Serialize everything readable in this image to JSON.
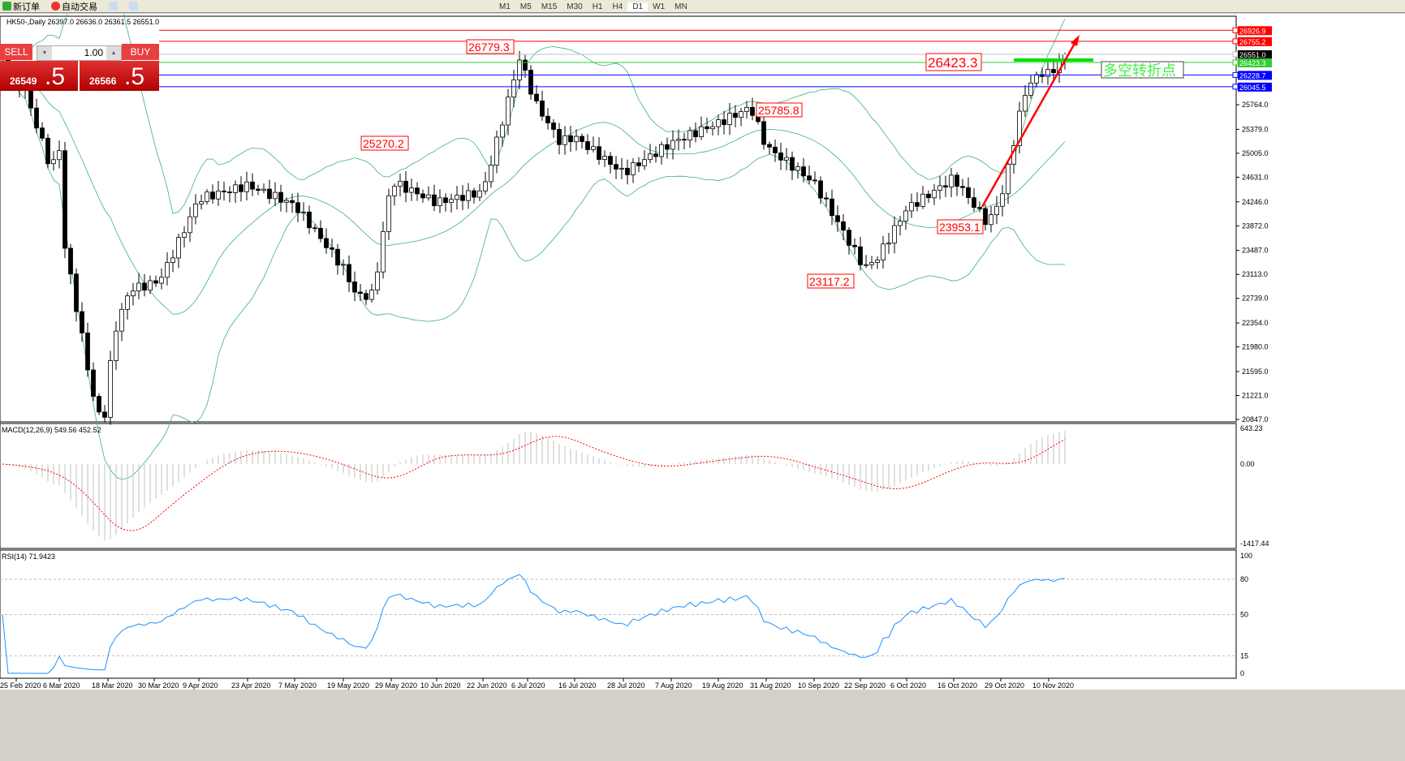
{
  "toolbar": {
    "new_order": "新订单",
    "auto_trading": "自动交易",
    "timeframes": [
      "M1",
      "M5",
      "M15",
      "M30",
      "H1",
      "H4",
      "D1",
      "W1",
      "MN"
    ],
    "active_timeframe": "D1"
  },
  "chart": {
    "title": "HK50-,Daily  26397.0 26636.0 26361.5 26551.0"
  },
  "trade_panel": {
    "sell_label": "SELL",
    "buy_label": "BUY",
    "lots": "1.00",
    "sell_main": "26549",
    "sell_frac": ".5",
    "buy_main": "26566",
    "buy_frac": ".5"
  },
  "chart_data": {
    "type": "candlestick",
    "symbol": "HK50-",
    "period": "Daily",
    "price_ticks": [
      "25764.0",
      "25379.0",
      "25005.0",
      "24631.0",
      "24246.0",
      "23872.0",
      "23487.0",
      "23113.0",
      "22739.0",
      "22354.0",
      "21980.0",
      "21595.0",
      "21221.0",
      "20847.0"
    ],
    "ylim": [
      20847,
      26926.9
    ],
    "date_ticks": [
      "25 Feb 2020",
      "6 Mar 2020",
      "18 Mar 2020",
      "30 Mar 2020",
      "9 Apr 2020",
      "23 Apr 2020",
      "7 May 2020",
      "19 May 2020",
      "29 May 2020",
      "10 Jun 2020",
      "22 Jun 2020",
      "6 Jul 2020",
      "16 Jul 2020",
      "28 Jul 2020",
      "7 Aug 2020",
      "19 Aug 2020",
      "31 Aug 2020",
      "10 Sep 2020",
      "22 Sep 2020",
      "6 Oct 2020",
      "16 Oct 2020",
      "29 Oct 2020",
      "10 Nov 2020"
    ],
    "approx_close_at_date_ticks": [
      26130,
      25120,
      21440,
      23090,
      24360,
      24480,
      24100,
      23090,
      24480,
      24230,
      24480,
      26260,
      25370,
      24740,
      25120,
      25370,
      24990,
      24480,
      23340,
      24230,
      24740,
      24360,
      26260
    ],
    "last_close": 26551.0,
    "price_annotations": [
      {
        "label": "26779.3",
        "color": "#ff0000"
      },
      {
        "label": "25270.2",
        "color": "#ff0000"
      },
      {
        "label": "25785.8",
        "color": "#ff0000"
      },
      {
        "label": "23953.1",
        "color": "#ff0000"
      },
      {
        "label": "23117.2",
        "color": "#ff0000"
      },
      {
        "label": "26423.3",
        "color": "#ff0000"
      }
    ],
    "horizontal_lines": [
      {
        "price": "26926.9",
        "color": "#ff0000"
      },
      {
        "price": "26755.2",
        "color": "#ff0000"
      },
      {
        "price": "26551.0",
        "color": "#000000"
      },
      {
        "price": "26423.3",
        "color": "#32cd32"
      },
      {
        "price": "26228.7",
        "color": "#0000ff"
      },
      {
        "price": "26045.5",
        "color": "#0000ff"
      }
    ],
    "text_annotation": "多空转折点",
    "bollinger_color": "#3cb371",
    "macd": {
      "label": "MACD(12,26,9) 549.56 452.52",
      "ticks": [
        "643.23",
        "0.00",
        "-1417.44"
      ],
      "signal_color": "#ff0000",
      "hist_color": "#c0c0c0"
    },
    "rsi": {
      "label": "RSI(14) 71.9423",
      "ticks": [
        "100",
        "80",
        "50",
        "15",
        "0"
      ],
      "color": "#1e90ff"
    }
  }
}
